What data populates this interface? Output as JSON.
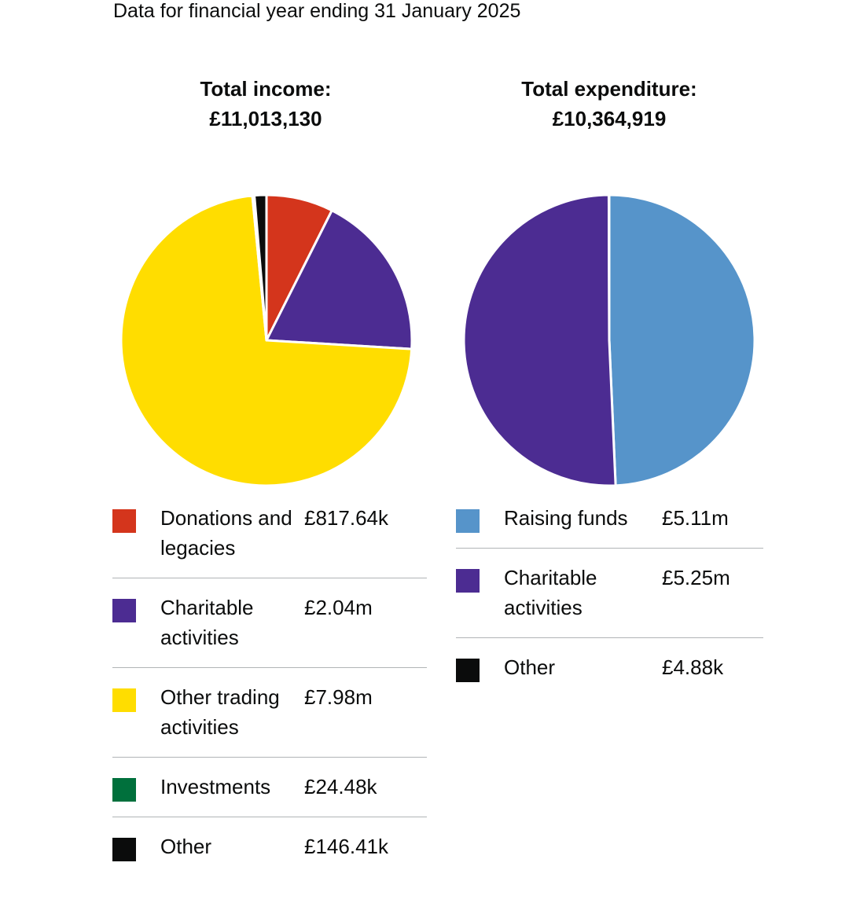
{
  "subtitle": "Data for financial year ending 31 January 2025",
  "chart_data": [
    {
      "type": "pie",
      "title": "Total income:",
      "total": "£11,013,130",
      "slices": [
        {
          "label": "Donations and legacies",
          "value": 817640,
          "display": "£817.64k",
          "color": "#d4351c"
        },
        {
          "label": "Charitable activities",
          "value": 2040000,
          "display": "£2.04m",
          "color": "#4c2c92"
        },
        {
          "label": "Other trading activities",
          "value": 7980000,
          "display": "£7.98m",
          "color": "#ffdd00"
        },
        {
          "label": "Investments",
          "value": 24480,
          "display": "£24.48k",
          "color": "#00703c"
        },
        {
          "label": "Other",
          "value": 146410,
          "display": "£146.41k",
          "color": "#0b0c0c"
        }
      ]
    },
    {
      "type": "pie",
      "title": "Total expenditure:",
      "total": "£10,364,919",
      "slices": [
        {
          "label": "Raising funds",
          "value": 5110000,
          "display": "£5.11m",
          "color": "#5694ca"
        },
        {
          "label": "Charitable activities",
          "value": 5250000,
          "display": "£5.25m",
          "color": "#4c2c92"
        },
        {
          "label": "Other",
          "value": 4880,
          "display": "£4.88k",
          "color": "#0b0c0c"
        }
      ]
    }
  ]
}
